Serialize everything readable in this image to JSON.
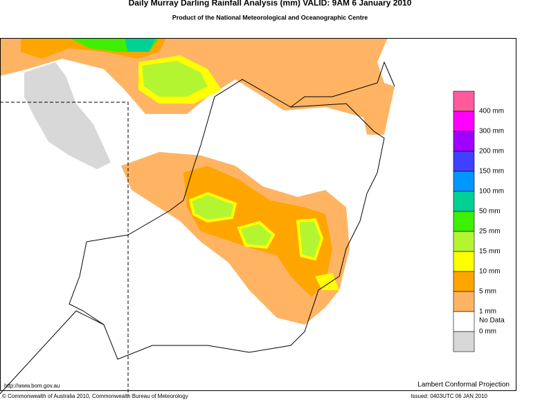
{
  "header": {
    "title": "Daily Murray Darling Rainfall Analysis (mm)  VALID: 9AM  6 January 2010",
    "subtitle": "Product of the National Meteorological and Oceanographic Centre"
  },
  "legend": {
    "colors": [
      "#ff5a9c",
      "#ff00ff",
      "#a000ff",
      "#4040ff",
      "#0096ff",
      "#00d296",
      "#3cf000",
      "#b4f532",
      "#ffff00",
      "#ffa500",
      "#ffb464",
      "#ffffff",
      "#d8d8d8"
    ],
    "labels": [
      "400 mm",
      "300 mm",
      "200 mm",
      "150 mm",
      "100 mm",
      "50 mm",
      "25 mm",
      "15 mm",
      "10 mm",
      "5 mm",
      "1 mm",
      "0 mm",
      "No Data"
    ]
  },
  "footer": {
    "url": "http://www.bom.gov.au",
    "projection": "Lambert Conformal Projection",
    "copyright": "© Commonwealth of Australia 2010, Commonwealth Bureau of Meteorology",
    "issued": "Issued: 0403UTC 06 JAN 2010"
  }
}
